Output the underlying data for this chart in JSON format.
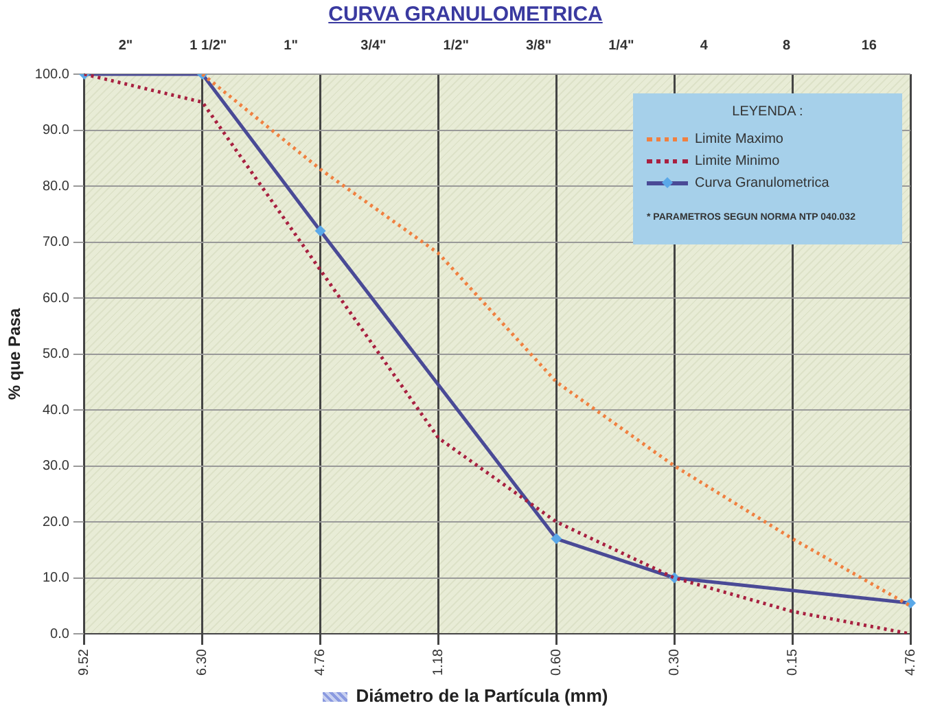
{
  "chart_data": {
    "type": "line",
    "title": "CURVA GRANULOMETRICA",
    "xlabel": "Diámetro de la Partícula (mm)",
    "ylabel": "% que Pasa",
    "legend_title": "LEYENDA :",
    "categories": [
      "9.52",
      "6.30",
      "4.76",
      "1.18",
      "0.60",
      "0.30",
      "0.15",
      "4.76"
    ],
    "series": [
      {
        "name": "Limite Maximo",
        "color": "#f08040",
        "line_style": "dotted",
        "marker": "none",
        "values": [
          null,
          100,
          83,
          68,
          45,
          30,
          17,
          5
        ]
      },
      {
        "name": "Limite Minimo",
        "color": "#a82040",
        "line_style": "dotted",
        "marker": "none",
        "values": [
          100,
          95,
          65,
          35,
          20,
          10,
          4,
          0
        ]
      },
      {
        "name": "Curva Granulometrica",
        "color": "#4a4a96",
        "line_style": "solid",
        "marker": "diamond",
        "values": [
          100,
          100,
          72,
          null,
          17,
          10,
          null,
          5.5
        ]
      }
    ],
    "ylim": [
      0,
      100
    ],
    "yticks": [
      {
        "value": 0,
        "label": "0.0"
      },
      {
        "value": 10,
        "label": "10.0"
      },
      {
        "value": 20,
        "label": "20.0"
      },
      {
        "value": 30,
        "label": "30.0"
      },
      {
        "value": 40,
        "label": "40.0"
      },
      {
        "value": 50,
        "label": "50.0"
      },
      {
        "value": 60,
        "label": "60.0"
      },
      {
        "value": 70,
        "label": "70.0"
      },
      {
        "value": 80,
        "label": "80.0"
      },
      {
        "value": 90,
        "label": "90.0"
      },
      {
        "value": 100,
        "label": "100.0"
      }
    ],
    "grid": true,
    "legend": "top right",
    "annotations": [
      "2\"",
      "1 1/2\"",
      "1\"",
      "3/4\"",
      "1/2\"",
      "3/8\"",
      "1/4\"",
      "4",
      "8",
      "16",
      "* PARAMETROS SEGUN NORMA NTP 040.032"
    ]
  }
}
